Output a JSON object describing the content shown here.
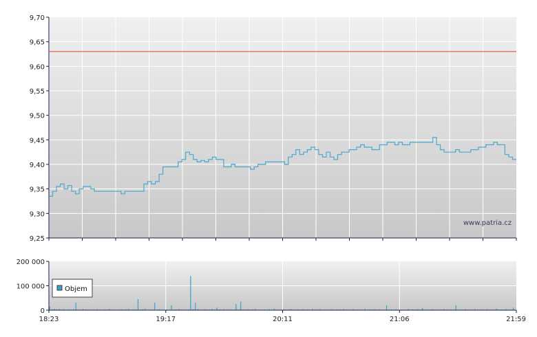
{
  "watermark": "www.patria.cz",
  "colors": {
    "price_line": "#4aa8d0",
    "reference_line": "#e05040",
    "volume_bars": "#3aa0c8",
    "plot_bg_top": "#f0f0f0",
    "plot_bg_bottom": "#c8c8c8",
    "grid": "#ffffff",
    "axis": "#1a1a4a"
  },
  "chart_data": [
    {
      "type": "line",
      "name": "price",
      "title": "",
      "xlabel": "",
      "ylabel": "",
      "ylim": [
        9.25,
        9.7
      ],
      "y_ticks": [
        "9,25",
        "9,30",
        "9,35",
        "9,40",
        "9,45",
        "9,50",
        "9,55",
        "9,60",
        "9,65",
        "9,70"
      ],
      "x_ticks": [
        "18:23",
        "19:17",
        "20:11",
        "21:06",
        "21:59"
      ],
      "reference_line": 9.63,
      "grid": true,
      "series": [
        {
          "values": [
            9.335,
            9.345,
            9.355,
            9.36,
            9.35,
            9.357,
            9.345,
            9.34,
            9.35,
            9.355,
            9.355,
            9.35,
            9.345,
            9.345,
            9.345,
            9.345,
            9.345,
            9.345,
            9.345,
            9.34,
            9.345,
            9.345,
            9.345,
            9.345,
            9.345,
            9.36,
            9.365,
            9.36,
            9.365,
            9.38,
            9.395,
            9.395,
            9.395,
            9.395,
            9.405,
            9.41,
            9.425,
            9.42,
            9.41,
            9.405,
            9.408,
            9.405,
            9.41,
            9.415,
            9.41,
            9.41,
            9.395,
            9.395,
            9.4,
            9.395,
            9.395,
            9.395,
            9.395,
            9.39,
            9.395,
            9.4,
            9.4,
            9.405,
            9.405,
            9.405,
            9.405,
            9.405,
            9.4,
            9.415,
            9.42,
            9.43,
            9.42,
            9.425,
            9.43,
            9.435,
            9.43,
            9.42,
            9.415,
            9.425,
            9.415,
            9.41,
            9.42,
            9.425,
            9.425,
            9.43,
            9.43,
            9.435,
            9.44,
            9.435,
            9.435,
            9.43,
            9.43,
            9.44,
            9.44,
            9.445,
            9.445,
            9.44,
            9.445,
            9.44,
            9.44,
            9.445,
            9.445,
            9.445,
            9.445,
            9.445,
            9.445,
            9.455,
            9.44,
            9.43,
            9.425,
            9.425,
            9.425,
            9.43,
            9.425,
            9.425,
            9.425,
            9.43,
            9.43,
            9.435,
            9.435,
            9.44,
            9.44,
            9.445,
            9.44,
            9.44,
            9.42,
            9.415,
            9.41,
            9.41
          ]
        }
      ]
    },
    {
      "type": "bar",
      "name": "volume",
      "ylim": [
        0,
        200000
      ],
      "y_ticks": [
        "0",
        "100 000",
        "200 000"
      ],
      "x_ticks": [
        "18:23",
        "19:17",
        "20:11",
        "21:06",
        "21:59"
      ],
      "legend": "Objem",
      "grid": true,
      "series": [
        {
          "name": "Objem",
          "values": [
            15000,
            4000,
            6000,
            3000,
            5000,
            2000,
            4000,
            2000,
            3000,
            1000,
            4000,
            30000,
            3000,
            2000,
            5000,
            2000,
            2000,
            3000,
            1000,
            2000,
            4000,
            2000,
            1000,
            3000,
            2000,
            5000,
            3000,
            2000,
            1000,
            2000,
            4000,
            2000,
            3000,
            5000,
            1000,
            2000,
            3000,
            45000,
            2000,
            3000,
            6000,
            2000,
            3000,
            2000,
            30000,
            2000,
            4000,
            2000,
            1000,
            3000,
            2000,
            20000,
            2000,
            3000,
            5000,
            2000,
            3000,
            2000,
            2000,
            140000,
            4000,
            30000,
            5000,
            3000,
            2000,
            4000,
            3000,
            2000,
            5000,
            2000,
            10000,
            3000,
            2000,
            4000,
            2000,
            3000,
            2000,
            1000,
            25000,
            2000,
            35000,
            3000,
            2000,
            4000,
            2000,
            3000,
            5000,
            2000,
            1000,
            2000,
            3000,
            2000,
            4000,
            2000,
            6000,
            2000,
            3000,
            2000,
            4000,
            2000,
            3000,
            5000,
            2000,
            2000,
            3000,
            2000,
            4000,
            2000,
            3000,
            2000,
            5000,
            2000,
            3000,
            4000,
            2000,
            2000,
            3000,
            2000,
            4000,
            2000,
            3000,
            2000,
            2000,
            5000,
            2000,
            3000,
            2000,
            4000,
            2000,
            2000,
            3000,
            2000,
            5000,
            2000,
            3000,
            2000,
            4000,
            2000,
            3000,
            2000,
            2000,
            20000,
            2000,
            3000,
            2000,
            4000,
            2000,
            3000,
            2000,
            2000,
            5000,
            2000,
            3000,
            2000,
            4000,
            2000,
            8000,
            2000,
            3000,
            2000,
            4000,
            2000,
            2000,
            3000,
            2000,
            5000,
            2000,
            2000,
            3000,
            2000,
            20000,
            2000,
            3000,
            2000,
            4000,
            2000,
            3000,
            2000,
            5000,
            2000,
            2000,
            3000,
            2000,
            4000,
            2000,
            3000,
            2000,
            6000,
            2000,
            3000,
            2000,
            4000,
            2000,
            3000,
            10000,
            2000
          ]
        }
      ]
    }
  ]
}
